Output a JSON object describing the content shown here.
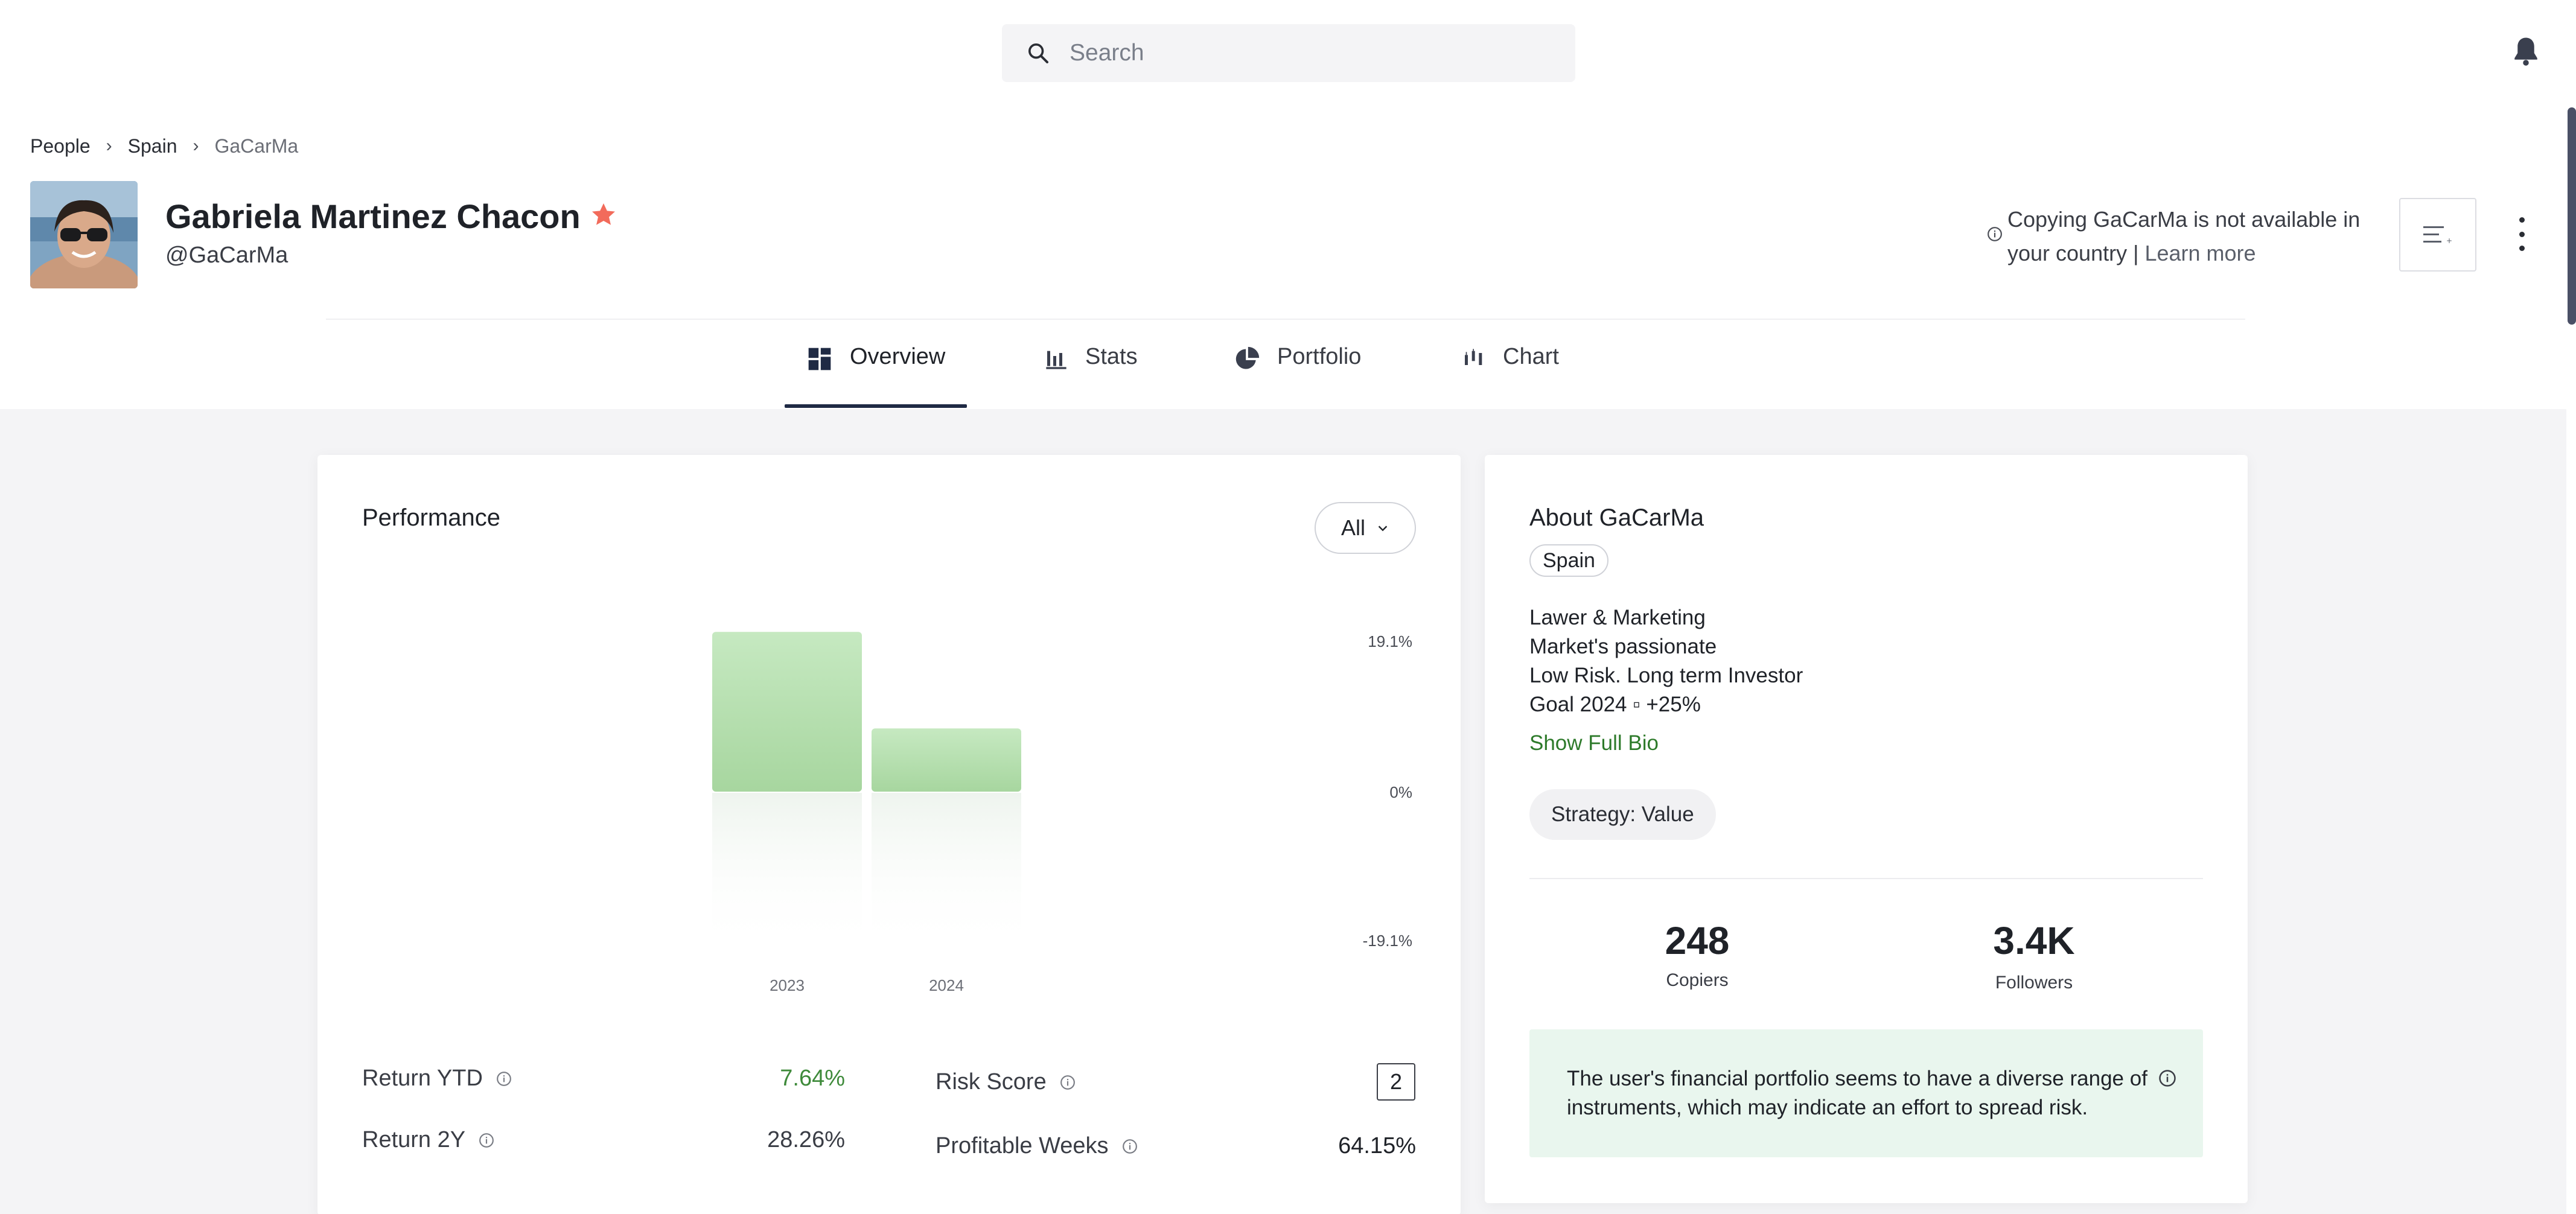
{
  "search": {
    "placeholder": "Search"
  },
  "breadcrumb": {
    "items": [
      "People",
      "Spain",
      "GaCarMa"
    ],
    "separator": "›"
  },
  "profile": {
    "name": "Gabriela Martinez Chacon",
    "handle": "@GaCarMa",
    "favorite_icon": "star-icon",
    "star_color": "#f26b5b"
  },
  "copy_notice": {
    "text": "Copying GaCarMa is not available in your country |",
    "link": "Learn more"
  },
  "tabs": [
    {
      "label": "Overview",
      "icon": "grid-icon",
      "active": true
    },
    {
      "label": "Stats",
      "icon": "bar-chart-icon",
      "active": false
    },
    {
      "label": "Portfolio",
      "icon": "pie-chart-icon",
      "active": false
    },
    {
      "label": "Chart",
      "icon": "candlestick-icon",
      "active": false
    }
  ],
  "performance": {
    "title": "Performance",
    "range": "All",
    "stats": {
      "return_ytd_label": "Return YTD",
      "return_ytd": "7.64%",
      "return_2y_label": "Return 2Y",
      "return_2y": "28.26%",
      "risk_label": "Risk Score",
      "risk": "2",
      "profitable_label": "Profitable Weeks",
      "profitable": "64.15%"
    }
  },
  "chart_data": {
    "type": "bar",
    "categories": [
      "2023",
      "2024"
    ],
    "values": [
      19.3,
      7.64
    ],
    "yticks": [
      "19.1%",
      "0%",
      "-19.1%"
    ],
    "ylim": [
      -19.1,
      19.1
    ],
    "title": "",
    "xlabel": "",
    "ylabel": "",
    "bar_color": "#b9e3b4"
  },
  "about": {
    "title": "About GaCarMa",
    "country": "Spain",
    "bio": [
      "Lawer & Marketing",
      "Market's passionate",
      "Low Risk. Long term Investor",
      "Goal 2024 ▫ +25%"
    ],
    "show_bio": "Show Full Bio",
    "strategy": "Strategy: Value",
    "copiers": "248",
    "copiers_label": "Copiers",
    "followers": "3.4K",
    "followers_label": "Followers",
    "insight": "The user's financial portfolio seems to have a diverse range of instruments, which may indicate an effort to spread risk."
  }
}
